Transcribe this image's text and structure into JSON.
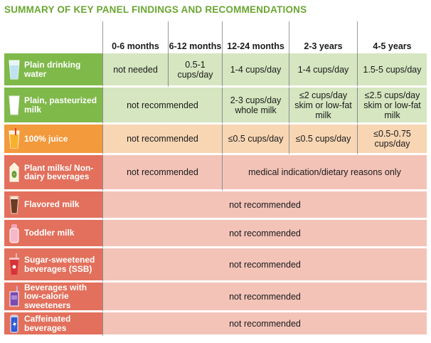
{
  "title": "SUMMARY OF KEY PANEL FINDINGS AND RECOMMENDATIONS",
  "columns": [
    "0-6 months",
    "6-12 months",
    "12-24 months",
    "2-3 years",
    "4-5 years"
  ],
  "rows": [
    {
      "label": "Plain drinking water",
      "icon": "water-glass-icon",
      "cells": [
        "not needed",
        "0.5-1 cups/day",
        "1-4 cups/day",
        "1-4 cups/day",
        "1.5-5 cups/day"
      ]
    },
    {
      "label": "Plain, pasteurized milk",
      "icon": "milk-glass-icon",
      "cells": [
        "not recommended",
        "2-3 cups/day whole milk",
        "≤2 cups/day skim or low-fat milk",
        "≤2.5 cups/day skim or low-fat milk"
      ]
    },
    {
      "label": "100% juice",
      "icon": "juice-glass-icon",
      "cells": [
        "not recommended",
        "≤0.5 cups/day",
        "≤0.5 cups/day",
        "≤0.5-0.75 cups/day"
      ]
    },
    {
      "label": "Plant milks/ Non-dairy beverages",
      "icon": "plant-milk-carton-icon",
      "cells": [
        "not recommended",
        "medical indication/dietary reasons only"
      ]
    },
    {
      "label": "Flavored milk",
      "icon": "chocolate-milk-glass-icon",
      "cells": [
        "not recommended"
      ]
    },
    {
      "label": "Toddler milk",
      "icon": "toddler-milk-bottle-icon",
      "cells": [
        "not recommended"
      ]
    },
    {
      "label": "Sugar-sweetened beverages (SSB)",
      "icon": "soda-cup-icon",
      "cells": [
        "not recommended"
      ]
    },
    {
      "label": "Beverages with low-calorie sweeteners",
      "icon": "drink-box-icon",
      "cells": [
        "not recommended"
      ]
    },
    {
      "label": "Caffeinated beverages",
      "icon": "energy-drink-can-icon",
      "cells": [
        "not recommended"
      ]
    }
  ],
  "colors": {
    "title": "#6aa632",
    "green_label": "#7fb94a",
    "green_cell": "#d5e6c0",
    "orange_label": "#f29a3c",
    "orange_cell": "#f8d6b4",
    "red_label": "#e2705c",
    "red_cell": "#f3c3b8"
  }
}
